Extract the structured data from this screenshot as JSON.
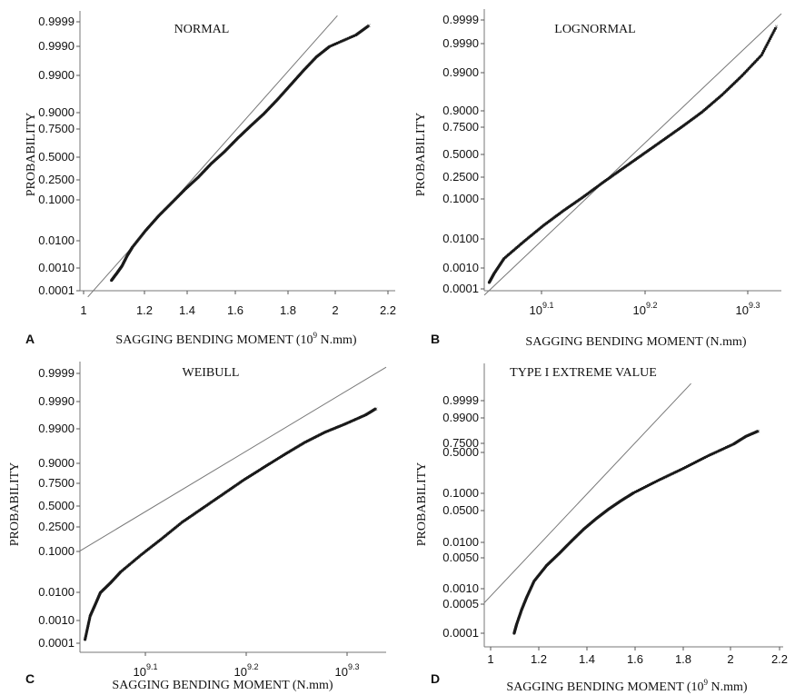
{
  "chart_data": [
    {
      "panel_label": "A",
      "type": "scatter",
      "title": "NORMAL",
      "xlabel": "SAGGING BENDING MOMENT (10",
      "xlabel_sup": "9",
      "xlabel_tail": " N.mm)",
      "ylabel": "PROBABILITY",
      "x_ticks": [
        "1",
        "1.2",
        "1.4",
        "1.6",
        "1.8",
        "2",
        "2.2"
      ],
      "y_ticks": [
        "0.9999",
        "0.9990",
        "0.9900",
        "0.9000",
        "0.7500",
        "0.5000",
        "0.2500",
        "0.1000",
        "0.0100",
        "0.0010",
        "0.0001"
      ],
      "xlim": [
        1,
        2.2
      ],
      "points": [
        [
          1.12,
          0.0003
        ],
        [
          1.14,
          0.0006
        ],
        [
          1.16,
          0.0012
        ],
        [
          1.18,
          0.003
        ],
        [
          1.2,
          0.006
        ],
        [
          1.25,
          0.02
        ],
        [
          1.3,
          0.05
        ],
        [
          1.35,
          0.1
        ],
        [
          1.4,
          0.18
        ],
        [
          1.45,
          0.28
        ],
        [
          1.5,
          0.42
        ],
        [
          1.55,
          0.55
        ],
        [
          1.6,
          0.69
        ],
        [
          1.65,
          0.8
        ],
        [
          1.7,
          0.88
        ],
        [
          1.75,
          0.94
        ],
        [
          1.8,
          0.975
        ],
        [
          1.85,
          0.991
        ],
        [
          1.9,
          0.997
        ],
        [
          1.95,
          0.9988
        ],
        [
          2.05,
          0.9996
        ],
        [
          2.1,
          0.99985
        ]
      ],
      "fit_line": [
        [
          1.03,
          5e-05
        ],
        [
          1.98,
          0.99995
        ]
      ]
    },
    {
      "panel_label": "B",
      "type": "scatter",
      "title": "LOGNORMAL",
      "xlabel": "SAGGING BENDING MOMENT (N.mm)",
      "ylabel": "PROBABILITY",
      "x_ticks": [
        "10",
        "10",
        "10"
      ],
      "x_ticks_sup": [
        "9.1",
        "9.2",
        "9.3"
      ],
      "y_ticks": [
        "0.9999",
        "0.9990",
        "0.9900",
        "0.9000",
        "0.7500",
        "0.5000",
        "0.2500",
        "0.1000",
        "0.0100",
        "0.0010",
        "0.0001"
      ],
      "xlim": [
        9.04,
        9.34
      ],
      "points": [
        [
          9.045,
          0.0002
        ],
        [
          9.05,
          0.0005
        ],
        [
          9.06,
          0.002
        ],
        [
          9.08,
          0.008
        ],
        [
          9.1,
          0.025
        ],
        [
          9.12,
          0.06
        ],
        [
          9.14,
          0.12
        ],
        [
          9.16,
          0.22
        ],
        [
          9.18,
          0.35
        ],
        [
          9.2,
          0.5
        ],
        [
          9.22,
          0.65
        ],
        [
          9.24,
          0.78
        ],
        [
          9.26,
          0.88
        ],
        [
          9.28,
          0.95
        ],
        [
          9.3,
          0.985
        ],
        [
          9.32,
          0.997
        ],
        [
          9.335,
          0.9998
        ]
      ],
      "fit_line": [
        [
          9.04,
          5e-05
        ],
        [
          9.34,
          0.99995
        ]
      ]
    },
    {
      "panel_label": "C",
      "type": "scatter",
      "title": "WEIBULL",
      "xlabel": "SAGGING BENDING MOMENT (N.mm)",
      "ylabel": "PROBABILITY",
      "x_ticks": [
        "10",
        "10",
        "10"
      ],
      "x_ticks_sup": [
        "9.1",
        "9.2",
        "9.3"
      ],
      "y_ticks": [
        "0.9999",
        "0.9990",
        "0.9900",
        "0.9000",
        "0.7500",
        "0.5000",
        "0.2500",
        "0.1000",
        "0.0100",
        "0.0010",
        "0.0001"
      ],
      "xlim": [
        9.04,
        9.34
      ],
      "points": [
        [
          9.045,
          0.00015
        ],
        [
          9.05,
          0.0015
        ],
        [
          9.055,
          0.004
        ],
        [
          9.06,
          0.01
        ],
        [
          9.07,
          0.02
        ],
        [
          9.08,
          0.04
        ],
        [
          9.1,
          0.1
        ],
        [
          9.12,
          0.2
        ],
        [
          9.14,
          0.35
        ],
        [
          9.16,
          0.5
        ],
        [
          9.18,
          0.65
        ],
        [
          9.2,
          0.78
        ],
        [
          9.22,
          0.87
        ],
        [
          9.24,
          0.93
        ],
        [
          9.26,
          0.965
        ],
        [
          9.28,
          0.982
        ],
        [
          9.3,
          0.99
        ],
        [
          9.32,
          0.995
        ],
        [
          9.33,
          0.997
        ]
      ],
      "fit_line": [
        [
          9.04,
          0.12
        ],
        [
          9.34,
          0.99995
        ]
      ]
    },
    {
      "panel_label": "D",
      "type": "scatter",
      "title": "TYPE I EXTREME VALUE",
      "xlabel": "SAGGING BENDING MOMENT (10",
      "xlabel_sup": "9",
      "xlabel_tail": " N.mm)",
      "ylabel": "PROBABILITY",
      "x_ticks": [
        "1",
        "1.2",
        "1.4",
        "1.6",
        "1.8",
        "2",
        "2.2"
      ],
      "y_ticks": [
        "0.9999",
        "0.9900",
        "0.7500",
        "0.5000",
        "0.1000",
        "0.0500",
        "0.0100",
        "0.0050",
        "0.0010",
        "0.0005",
        "0.0001"
      ],
      "xlim": [
        1,
        2.2
      ],
      "points": [
        [
          1.12,
          0.0001
        ],
        [
          1.13,
          0.0003
        ],
        [
          1.15,
          0.0015
        ],
        [
          1.17,
          0.005
        ],
        [
          1.2,
          0.02
        ],
        [
          1.25,
          0.06
        ],
        [
          1.3,
          0.12
        ],
        [
          1.35,
          0.22
        ],
        [
          1.4,
          0.35
        ],
        [
          1.45,
          0.48
        ],
        [
          1.5,
          0.6
        ],
        [
          1.55,
          0.7
        ],
        [
          1.6,
          0.78
        ],
        [
          1.7,
          0.88
        ],
        [
          1.8,
          0.94
        ],
        [
          1.9,
          0.975
        ],
        [
          2.0,
          0.99
        ],
        [
          2.05,
          0.995
        ],
        [
          2.1,
          0.997
        ]
      ],
      "fit_line": [
        [
          1.0,
          0.003
        ],
        [
          1.83,
          0.99999
        ]
      ]
    }
  ]
}
